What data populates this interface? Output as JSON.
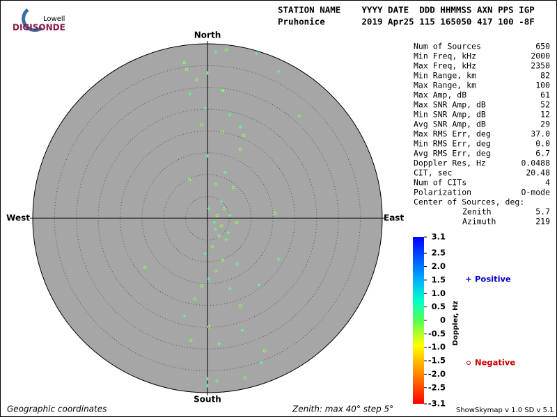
{
  "header": {
    "logo_top": "Lowell",
    "logo_bottom": "DIGISONDE",
    "columns": "STATION NAME    YYYY DATE  DDD HHMMSS AXN PPS IGP",
    "values": "Pruhonice       2019 Apr25 115 165050 417 100 -8F"
  },
  "stats": [
    [
      "Num of Sources",
      "650"
    ],
    [
      "Min Freq, kHz",
      "2000"
    ],
    [
      "Max Freq, kHz",
      "2350"
    ],
    [
      "Min Range, km",
      "82"
    ],
    [
      "Max Range, km",
      "100"
    ],
    [
      "Max Amp, dB",
      "61"
    ],
    [
      "Max SNR Amp, dB",
      "52"
    ],
    [
      "Min SNR Amp, dB",
      "12"
    ],
    [
      "Avg SNR Amp, dB",
      "29"
    ],
    [
      "Max RMS Err, deg",
      "37.0"
    ],
    [
      "Min RMS Err, deg",
      "0.0"
    ],
    [
      "Avg RMS Err, deg",
      "6.7"
    ],
    [
      "Doppler Res, Hz",
      "0.0488"
    ],
    [
      "CIT, sec",
      "20.48"
    ],
    [
      "Num of CITs",
      "4"
    ],
    [
      "Polarization",
      "O-mode"
    ]
  ],
  "center_title": "Center of Sources, deg:",
  "center": [
    [
      "Zenith",
      "5.7"
    ],
    [
      "Azimuth",
      "219"
    ]
  ],
  "chart_data": {
    "type": "polar-scatter",
    "directions": {
      "north": "North",
      "south": "South",
      "east": "East",
      "west": "West"
    },
    "rlim": [
      0,
      40
    ],
    "rticks": [
      5,
      10,
      15,
      20,
      25,
      30,
      35
    ],
    "series": [
      {
        "name": "Positive",
        "marker": "+",
        "color": "#55ff88",
        "x": [
          1.9,
          11.2,
          16.3,
          0,
          3.5,
          -4.0,
          -0.5,
          7.5,
          0,
          4.0,
          3.2,
          5.1,
          1.9,
          4.3,
          -0.5,
          6.7,
          0.3,
          5.1,
          11.8,
          -5.3,
          2.7,
          8.0,
          12.3,
          2.2,
          0,
          0,
          16.3,
          1.6,
          4.8,
          0.3,
          5.1
        ],
        "y": [
          38.1,
          37.8,
          33.6,
          33.3,
          29.3,
          28.5,
          25.3,
          20.9,
          14.3,
          10.5,
          3.8,
          0.6,
          -2.5,
          -4.9,
          -8.1,
          -10.5,
          -13.9,
          -16.1,
          -15.3,
          -22.5,
          -28.8,
          -25.7,
          -33.1,
          -37.3,
          -36.8,
          -38.4,
          -9.4,
          -1.0,
          -3.3,
          2.2,
          23.7
        ]
      },
      {
        "name": "Negative",
        "marker": "o",
        "color": "#88ff55",
        "x": [
          4.3,
          -5.3,
          -4.8,
          -2.5,
          3.5,
          21.0,
          8.3,
          3.5,
          -1.3,
          -4.1,
          1.9,
          3.8,
          6.7,
          2.7,
          1.1,
          3.5,
          1.9,
          -1.3,
          7.5,
          -2.9,
          0.3,
          -3.8,
          13.1,
          8.6,
          -14.3,
          15.5,
          5.9,
          3.2,
          2.2,
          7.5
        ],
        "y": [
          38.6,
          35.7,
          34.1,
          31.7,
          29.3,
          23.4,
          19.0,
          19.8,
          21.4,
          8.9,
          7.8,
          2.2,
          -1.0,
          -4.1,
          -6.5,
          -9.7,
          -12.1,
          -15.5,
          -20.1,
          -18.5,
          -24.9,
          -28.0,
          -30.4,
          -36.6,
          -11.3,
          1.1,
          7.0,
          -1.8,
          0.6,
          15.8
        ]
      }
    ],
    "legend": {
      "positive": "Positive",
      "negative": "Negative"
    },
    "colorbar": {
      "label": "Doppler, Hz",
      "lim": [
        -3.1,
        3.1
      ],
      "ticks": [
        3.1,
        2.5,
        {
          "value": 2,
          "label": "2.0"
        },
        1.5,
        {
          "value": 1,
          "label": "1.0"
        },
        0.5,
        0,
        -0.5,
        {
          "value": -1,
          "label": "-1.0"
        },
        -1.5,
        {
          "value": -2,
          "label": "-2.0"
        },
        -2.5,
        -3.1
      ]
    }
  },
  "footer": {
    "left": "Geographic coordinates",
    "middle": "Zenith: max 40°  step 5°",
    "right": "ShowSkymap v 1.0  SD v 5.1"
  }
}
